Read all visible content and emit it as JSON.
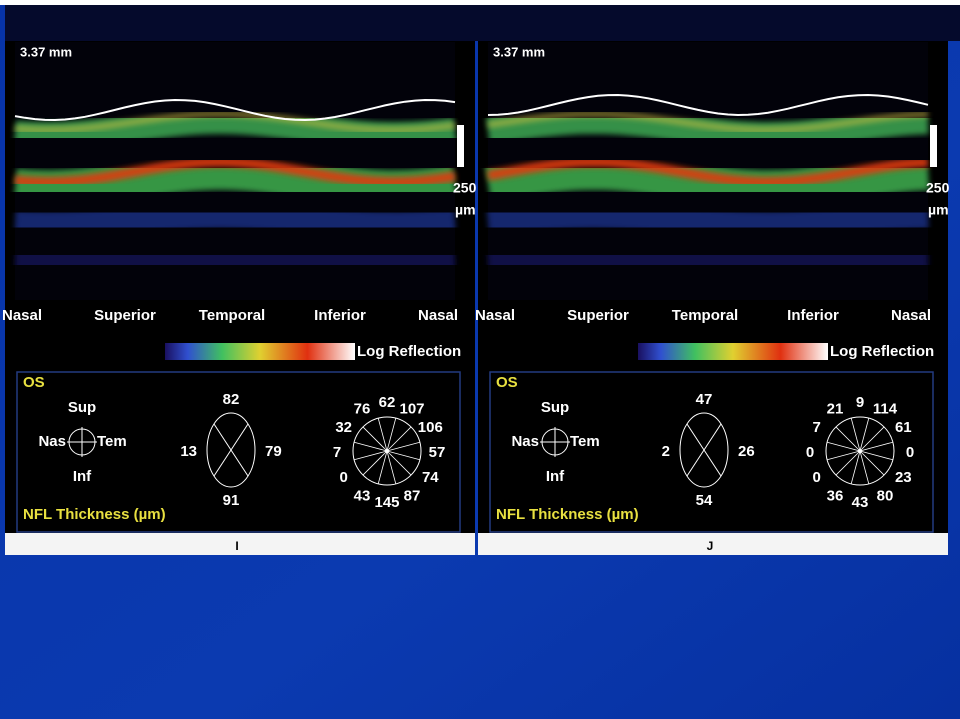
{
  "panels": [
    {
      "scale": "3.37 mm",
      "bar_value": "250",
      "bar_unit": "µm",
      "positions": [
        "Nasal",
        "Superior",
        "Temporal",
        "Inferior",
        "Nasal"
      ],
      "legend": "Log Reflection",
      "eye": "OS",
      "compass": {
        "sup": "Sup",
        "nas": "Nas",
        "tem": "Tem",
        "inf": "Inf"
      },
      "quadrants": {
        "sup": 82,
        "tem": 79,
        "inf": 91,
        "nas": 13
      },
      "clock_hours": [
        62,
        107,
        106,
        57,
        74,
        87,
        145,
        43,
        0,
        7,
        32,
        76
      ],
      "footer": "NFL Thickness (µm)",
      "caption": "I"
    },
    {
      "scale": "3.37 mm",
      "bar_value": "250",
      "bar_unit": "µm",
      "positions": [
        "Nasal",
        "Superior",
        "Temporal",
        "Inferior",
        "Nasal"
      ],
      "legend": "Log Reflection",
      "eye": "OS",
      "compass": {
        "sup": "Sup",
        "nas": "Nas",
        "tem": "Tem",
        "inf": "Inf"
      },
      "quadrants": {
        "sup": 47,
        "tem": 26,
        "inf": 54,
        "nas": 2
      },
      "clock_hours": [
        9,
        114,
        61,
        0,
        23,
        80,
        43,
        36,
        0,
        0,
        7,
        21
      ],
      "footer": "NFL Thickness (µm)",
      "caption": "J"
    }
  ]
}
